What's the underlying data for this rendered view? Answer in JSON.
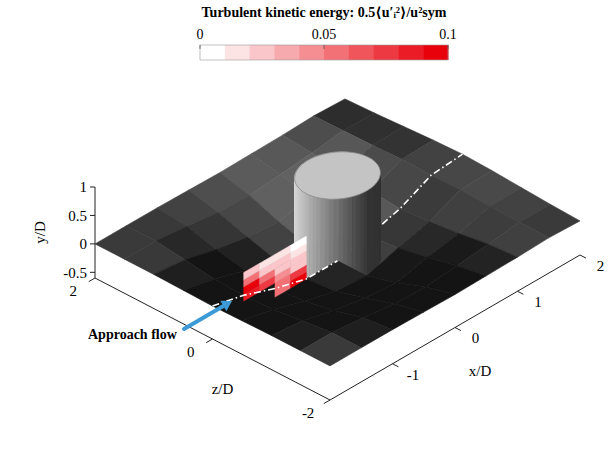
{
  "chart_data": {
    "type": "surface3d",
    "title": "Turbulent kinetic energy: 0.5⟨u′ᵢ²⟩/u²sym",
    "xlabel": "x/D",
    "ylabel": "y/D",
    "zlabel": "z/D",
    "xlim": [
      -2,
      2
    ],
    "xticks": [
      -1,
      0,
      1,
      2
    ],
    "ylim": [
      -0.6,
      1
    ],
    "yticks": [
      -0.5,
      0,
      0.5,
      1
    ],
    "zlim": [
      -2,
      2
    ],
    "zticks": [
      -2,
      0,
      2
    ],
    "surface": {
      "color": "#3a3a3a",
      "x": [
        -2,
        -1.5,
        -1,
        -0.5,
        0,
        0.5,
        1,
        1.5,
        2
      ],
      "z": [
        -2,
        -1.5,
        -1,
        -0.5,
        0,
        0.5,
        1,
        1.5,
        2
      ],
      "values": [
        [
          0,
          0,
          0,
          -0.01,
          -0.02,
          -0.01,
          0,
          0.02,
          0
        ],
        [
          0,
          0,
          -0.06,
          -0.13,
          -0.15,
          -0.1,
          -0.04,
          0.03,
          0.02
        ],
        [
          0,
          -0.06,
          -0.2,
          -0.3,
          -0.35,
          -0.22,
          -0.12,
          0.04,
          0.05
        ],
        [
          -0.01,
          -0.13,
          -0.3,
          -0.45,
          -0.5,
          -0.32,
          -0.18,
          0.06,
          0.08
        ],
        [
          -0.02,
          -0.15,
          -0.35,
          -0.5,
          -0.5,
          -0.38,
          -0.22,
          0.05,
          0.1
        ],
        [
          -0.01,
          -0.13,
          -0.3,
          -0.45,
          -0.5,
          -0.32,
          -0.18,
          0.06,
          0.08
        ],
        [
          0,
          -0.06,
          -0.2,
          -0.3,
          -0.35,
          -0.22,
          -0.12,
          0.04,
          0.05
        ],
        [
          0,
          0,
          -0.06,
          -0.13,
          -0.15,
          -0.1,
          -0.04,
          0.03,
          0.02
        ],
        [
          0,
          0,
          0,
          -0.01,
          -0.02,
          -0.01,
          0,
          0.02,
          0
        ]
      ]
    },
    "profile": {
      "z": 0,
      "color": "#ffffff",
      "line_style": "dashdot"
    },
    "tke": {
      "z": 0,
      "x": [
        -1.5,
        -1.25,
        -1,
        -0.75,
        -0.5
      ],
      "y": [
        -0.5,
        -0.375,
        -0.25,
        -0.125,
        0,
        0.125,
        0.25
      ],
      "values": [
        [
          null,
          null,
          0.05,
          0.09
        ],
        [
          null,
          null,
          0.06,
          0.07
        ],
        [
          0.08,
          0.07,
          0.04,
          0.03
        ],
        [
          0.09,
          0.05,
          0.03,
          0.02
        ],
        [
          0.06,
          0.03,
          0.02,
          0.01
        ],
        [
          0.02,
          0.01,
          0.01,
          0
        ]
      ]
    },
    "colorbar": {
      "range": [
        0,
        0.1
      ],
      "ticks": [
        0,
        0.05,
        0.1
      ],
      "colors": [
        "#ffffff",
        "#e8000b"
      ]
    },
    "annotations": [
      {
        "text": "Approach flow",
        "color": "#3c9ad6"
      }
    ]
  }
}
